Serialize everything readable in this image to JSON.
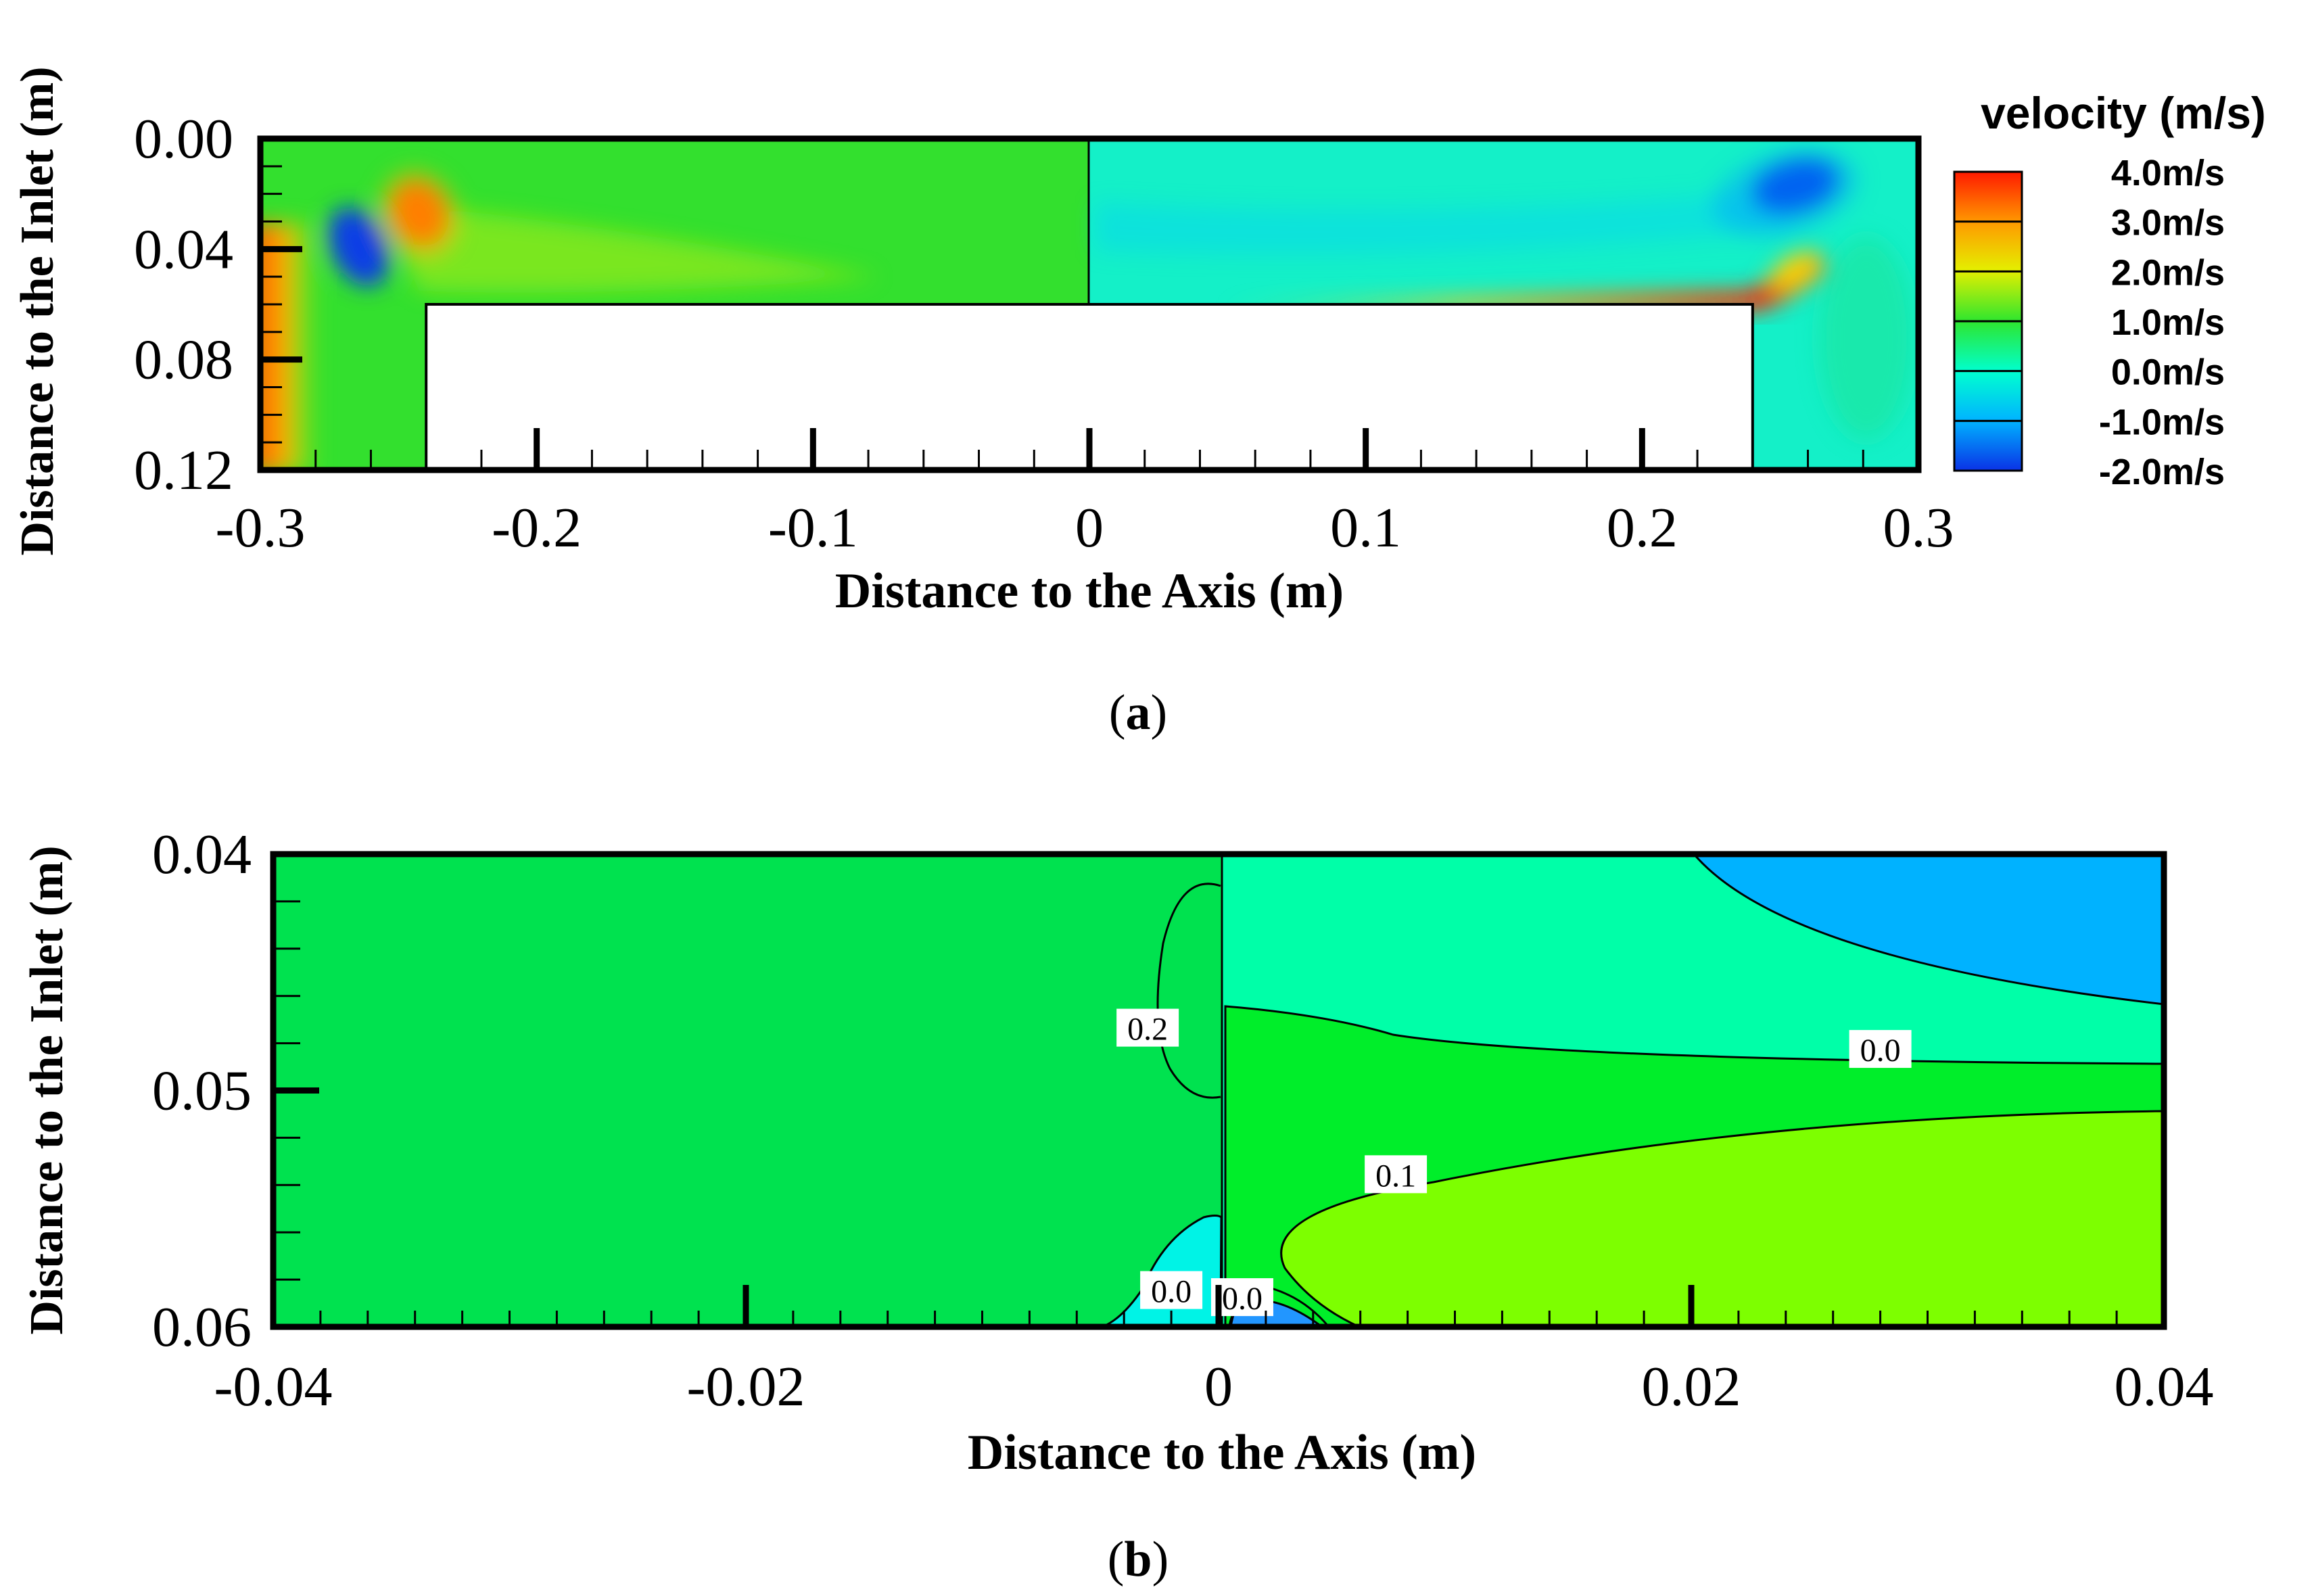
{
  "panels": {
    "a": {
      "caption_letter": "a"
    },
    "b": {
      "caption_letter": "b"
    }
  },
  "chart_data": [
    {
      "type": "heatmap",
      "panel": "a",
      "title": "",
      "xlabel": "Distance to the Axis (m)",
      "ylabel": "Distance to the Inlet (m)",
      "xlim": [
        -0.3,
        0.3
      ],
      "ylim": [
        0.0,
        0.12
      ],
      "y_inverted": true,
      "x_ticks": [
        "-0.3",
        "-0.2",
        "-0.1",
        "0",
        "0.1",
        "0.2",
        "0.3"
      ],
      "x_tick_values": [
        -0.3,
        -0.2,
        -0.1,
        0,
        0.1,
        0.2,
        0.3
      ],
      "y_ticks": [
        "0.00",
        "0.04",
        "0.08",
        "0.12"
      ],
      "y_tick_values": [
        0.0,
        0.04,
        0.08,
        0.12
      ],
      "grid": false,
      "colorbar": {
        "title": "velocity (m/s)",
        "labels": [
          "4.0m/s",
          "3.0m/s",
          "2.0m/s",
          "1.0m/s",
          "0.0m/s",
          "-1.0m/s",
          "-2.0m/s"
        ],
        "values": [
          4.0,
          3.0,
          2.0,
          1.0,
          0.0,
          -1.0,
          -2.0
        ],
        "colors": [
          "#ff1a00",
          "#ff9a00",
          "#e4ef00",
          "#2ee62e",
          "#00ffd0",
          "#00b4ff",
          "#0a32e6"
        ]
      },
      "obstacle": {
        "x_range": [
          -0.24,
          0.24
        ],
        "y_range": [
          0.06,
          0.12
        ]
      },
      "divider_x": 0,
      "flow_features": [
        {
          "kind": "high",
          "x": -0.295,
          "y": 0.06,
          "value": 3.0
        },
        {
          "kind": "low",
          "x": -0.265,
          "y": 0.04,
          "value": -2.0
        },
        {
          "kind": "high",
          "x": -0.242,
          "y": 0.03,
          "value": 3.0
        },
        {
          "kind": "low",
          "x": 0.258,
          "y": 0.017,
          "value": -2.0
        },
        {
          "kind": "jet",
          "x_range": [
            0.1,
            0.25
          ],
          "y": 0.057,
          "value": 3.5
        }
      ]
    },
    {
      "type": "heatmap",
      "panel": "b",
      "title": "",
      "xlabel": "Distance to the Axis (m)",
      "ylabel": "Distance to the Inlet (m)",
      "xlim": [
        -0.04,
        0.04
      ],
      "ylim": [
        0.04,
        0.06
      ],
      "y_inverted": true,
      "x_ticks": [
        "-0.04",
        "-0.02",
        "0",
        "0.02",
        "0.04"
      ],
      "x_tick_values": [
        -0.04,
        -0.02,
        0,
        0.02,
        0.04
      ],
      "y_ticks": [
        "0.04",
        "0.05",
        "0.06"
      ],
      "y_tick_values": [
        0.04,
        0.05,
        0.06
      ],
      "grid": false,
      "contour_labels": [
        {
          "text": "0.2",
          "x": -0.003,
          "y": 0.0474
        },
        {
          "text": "0.0",
          "x": 0.028,
          "y": 0.0483
        },
        {
          "text": "0.1",
          "x": 0.0075,
          "y": 0.0536
        },
        {
          "text": "0.0",
          "x": -0.002,
          "y": 0.0585
        },
        {
          "text": "0.0",
          "x": 0.001,
          "y": 0.0588
        }
      ],
      "region_colors": {
        "left": "#00e24f",
        "upper_right": "#00ffa8",
        "corner": "#00b2ff",
        "middle_right": "#00ee2a",
        "lower_right": "#7dff00",
        "near_axis_low": "#00f3e6",
        "near_axis_min": "#2296ff"
      }
    }
  ]
}
